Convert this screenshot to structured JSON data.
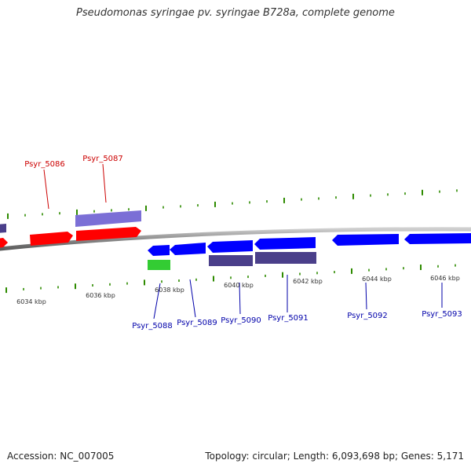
{
  "title": "Pseudomonas syringae pv. syringae B728a, complete genome",
  "footer": {
    "accession": "Accession: NC_007005",
    "summary": "Topology: circular; Length: 6,093,698 bp; Genes: 5,171"
  },
  "colors": {
    "forward_gene": "#ff0000",
    "reverse_gene": "#0000ff",
    "forward_cds": "#7b6fd6",
    "reverse_cds": "#4a3f8a",
    "rna_gene": "#33cc33",
    "backbone": "#888888",
    "tick": "#2e8b00",
    "forward_label": "#cc0000",
    "reverse_label": "#0000aa"
  },
  "scale_labels": [
    "6034 kbp",
    "6036 kbp",
    "6038 kbp",
    "6040 kbp",
    "6042 kbp",
    "6044 kbp",
    "6046 kbp"
  ],
  "genes_forward": [
    {
      "label": "Psyr_5086"
    },
    {
      "label": "Psyr_5087"
    }
  ],
  "genes_reverse": [
    {
      "label": "Psyr_5088"
    },
    {
      "label": "Psyr_5089"
    },
    {
      "label": "Psyr_5090"
    },
    {
      "label": "Psyr_5091"
    },
    {
      "label": "Psyr_5092"
    },
    {
      "label": "Psyr_5093"
    }
  ]
}
